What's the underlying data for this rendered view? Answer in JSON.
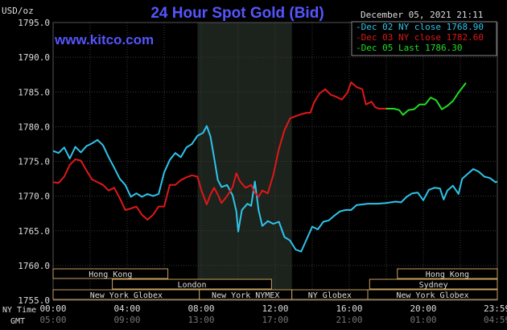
{
  "chart_data": {
    "type": "line",
    "title": "24 Hour Spot Gold (Bid)",
    "brand": "www.kitco.com",
    "date_label": "December 05, 2021 21:11",
    "ylabel": "USD/oz",
    "ylim": [
      1755.0,
      1795.0
    ],
    "y_ticks": [
      "1795.0",
      "1790.0",
      "1785.0",
      "1780.0",
      "1775.0",
      "1770.0",
      "1765.0",
      "1760.0",
      "1755.0"
    ],
    "x_range": [
      0,
      24
    ],
    "x_ticks": [
      {
        "ny": "00:00",
        "gmt": "05:00"
      },
      {
        "ny": "04:00",
        "gmt": "09:00"
      },
      {
        "ny": "08:00",
        "gmt": "13:00"
      },
      {
        "ny": "12:00",
        "gmt": "17:00"
      },
      {
        "ny": "16:00",
        "gmt": "21:00"
      },
      {
        "ny": "20:00",
        "gmt": "01:00"
      },
      {
        "ny": "23:59",
        "gmt": "04:59"
      }
    ],
    "x_axis_labels": {
      "ny": "NY Time",
      "gmt": "GMT"
    },
    "grid": true,
    "highlight_band": [
      7.8,
      12.9
    ],
    "legend_position": "top-right",
    "colors": {
      "series_a": "#2ec4ea",
      "series_b": "#e01818",
      "series_c": "#22dd22",
      "accent": "#5555ff",
      "sessions": "#c8a060"
    },
    "series": [
      {
        "name": "Dec 02 NY close 1768.90",
        "color": "#2ec4ea",
        "points": [
          [
            0,
            1776.5
          ],
          [
            0.3,
            1776.2
          ],
          [
            0.6,
            1777.0
          ],
          [
            0.9,
            1775.4
          ],
          [
            1.2,
            1777.1
          ],
          [
            1.5,
            1776.3
          ],
          [
            1.8,
            1777.2
          ],
          [
            2.1,
            1777.6
          ],
          [
            2.4,
            1778.1
          ],
          [
            2.7,
            1777.3
          ],
          [
            3.0,
            1775.6
          ],
          [
            3.3,
            1774.1
          ],
          [
            3.6,
            1772.5
          ],
          [
            3.9,
            1771.6
          ],
          [
            4.2,
            1769.9
          ],
          [
            4.5,
            1770.4
          ],
          [
            4.8,
            1769.9
          ],
          [
            5.1,
            1770.3
          ],
          [
            5.4,
            1770.0
          ],
          [
            5.7,
            1770.3
          ],
          [
            6.0,
            1773.4
          ],
          [
            6.3,
            1775.2
          ],
          [
            6.6,
            1776.2
          ],
          [
            6.9,
            1775.6
          ],
          [
            7.2,
            1777.0
          ],
          [
            7.5,
            1777.5
          ],
          [
            7.8,
            1778.7
          ],
          [
            8.1,
            1779.1
          ],
          [
            8.3,
            1780.1
          ],
          [
            8.5,
            1778.6
          ],
          [
            8.7,
            1775.5
          ],
          [
            8.9,
            1772.3
          ],
          [
            9.1,
            1771.3
          ],
          [
            9.4,
            1771.6
          ],
          [
            9.7,
            1770.1
          ],
          [
            9.9,
            1767.8
          ],
          [
            10.0,
            1764.9
          ],
          [
            10.2,
            1768.0
          ],
          [
            10.5,
            1768.9
          ],
          [
            10.7,
            1768.6
          ],
          [
            10.9,
            1772.1
          ],
          [
            11.1,
            1768.0
          ],
          [
            11.3,
            1765.7
          ],
          [
            11.6,
            1766.4
          ],
          [
            11.9,
            1766.0
          ],
          [
            12.2,
            1766.3
          ],
          [
            12.5,
            1764.1
          ],
          [
            12.8,
            1763.6
          ],
          [
            13.1,
            1762.3
          ],
          [
            13.4,
            1762.0
          ],
          [
            13.7,
            1763.8
          ],
          [
            14.0,
            1765.6
          ],
          [
            14.3,
            1765.2
          ],
          [
            14.6,
            1766.3
          ],
          [
            14.9,
            1766.5
          ],
          [
            15.2,
            1767.2
          ],
          [
            15.5,
            1767.8
          ],
          [
            15.8,
            1768.0
          ],
          [
            16.1,
            1768.0
          ],
          [
            16.4,
            1768.7
          ],
          [
            16.7,
            1768.8
          ],
          [
            17.0,
            1768.9
          ],
          [
            17.5,
            1768.9
          ],
          [
            18.0,
            1769.0
          ],
          [
            18.5,
            1769.2
          ],
          [
            18.8,
            1769.1
          ],
          [
            19.1,
            1769.9
          ],
          [
            19.4,
            1770.4
          ],
          [
            19.7,
            1770.5
          ],
          [
            20.0,
            1769.4
          ],
          [
            20.3,
            1770.9
          ],
          [
            20.6,
            1771.2
          ],
          [
            20.9,
            1771.1
          ],
          [
            21.1,
            1769.5
          ],
          [
            21.3,
            1770.8
          ],
          [
            21.6,
            1771.5
          ],
          [
            21.9,
            1770.3
          ],
          [
            22.1,
            1772.5
          ],
          [
            22.4,
            1773.2
          ],
          [
            22.7,
            1773.9
          ],
          [
            23.0,
            1773.5
          ],
          [
            23.3,
            1772.8
          ],
          [
            23.6,
            1772.6
          ],
          [
            23.9,
            1772.0
          ],
          [
            24.0,
            1772.1
          ]
        ]
      },
      {
        "name": "Dec 03 NY close 1782.60",
        "color": "#e01818",
        "points": [
          [
            0,
            1772.0
          ],
          [
            0.3,
            1771.9
          ],
          [
            0.6,
            1772.8
          ],
          [
            0.9,
            1774.5
          ],
          [
            1.2,
            1775.3
          ],
          [
            1.5,
            1775.1
          ],
          [
            1.8,
            1773.7
          ],
          [
            2.1,
            1772.4
          ],
          [
            2.4,
            1772.0
          ],
          [
            2.7,
            1771.6
          ],
          [
            3.0,
            1770.8
          ],
          [
            3.3,
            1771.2
          ],
          [
            3.6,
            1769.7
          ],
          [
            3.9,
            1768.0
          ],
          [
            4.2,
            1768.2
          ],
          [
            4.5,
            1768.5
          ],
          [
            4.8,
            1767.3
          ],
          [
            5.1,
            1766.6
          ],
          [
            5.4,
            1767.3
          ],
          [
            5.7,
            1768.5
          ],
          [
            6.0,
            1768.5
          ],
          [
            6.3,
            1771.6
          ],
          [
            6.6,
            1771.6
          ],
          [
            6.9,
            1772.3
          ],
          [
            7.2,
            1772.7
          ],
          [
            7.5,
            1773.0
          ],
          [
            7.8,
            1772.8
          ],
          [
            8.0,
            1770.9
          ],
          [
            8.3,
            1768.8
          ],
          [
            8.5,
            1770.2
          ],
          [
            8.7,
            1771.2
          ],
          [
            8.9,
            1770.2
          ],
          [
            9.1,
            1769.0
          ],
          [
            9.4,
            1770.0
          ],
          [
            9.7,
            1771.3
          ],
          [
            9.9,
            1773.3
          ],
          [
            10.1,
            1772.1
          ],
          [
            10.4,
            1771.2
          ],
          [
            10.7,
            1771.6
          ],
          [
            10.9,
            1770.5
          ],
          [
            11.1,
            1769.9
          ],
          [
            11.3,
            1770.8
          ],
          [
            11.6,
            1770.4
          ],
          [
            11.9,
            1773.1
          ],
          [
            12.2,
            1776.8
          ],
          [
            12.5,
            1779.5
          ],
          [
            12.8,
            1781.2
          ],
          [
            13.1,
            1781.5
          ],
          [
            13.4,
            1781.8
          ],
          [
            13.7,
            1782.0
          ],
          [
            13.9,
            1782.0
          ],
          [
            14.1,
            1783.5
          ],
          [
            14.4,
            1784.8
          ],
          [
            14.7,
            1785.4
          ],
          [
            15.0,
            1784.6
          ],
          [
            15.3,
            1784.3
          ],
          [
            15.6,
            1783.9
          ],
          [
            15.9,
            1784.9
          ],
          [
            16.1,
            1786.4
          ],
          [
            16.4,
            1785.7
          ],
          [
            16.7,
            1785.4
          ],
          [
            16.9,
            1783.2
          ],
          [
            17.2,
            1783.6
          ],
          [
            17.4,
            1782.8
          ],
          [
            17.6,
            1782.6
          ],
          [
            18.0,
            1782.6
          ]
        ]
      },
      {
        "name": "Dec 05 Last 1786.30",
        "color": "#22dd22",
        "points": [
          [
            18.0,
            1782.6
          ],
          [
            18.4,
            1782.6
          ],
          [
            18.7,
            1782.4
          ],
          [
            18.9,
            1781.7
          ],
          [
            19.2,
            1782.4
          ],
          [
            19.5,
            1782.5
          ],
          [
            19.8,
            1783.2
          ],
          [
            20.1,
            1783.2
          ],
          [
            20.4,
            1784.2
          ],
          [
            20.7,
            1783.8
          ],
          [
            21.0,
            1782.5
          ],
          [
            21.3,
            1783.0
          ],
          [
            21.6,
            1783.7
          ],
          [
            21.9,
            1784.9
          ],
          [
            22.1,
            1785.6
          ],
          [
            22.3,
            1786.3
          ]
        ]
      }
    ],
    "sessions": [
      {
        "label": "Hong Kong",
        "start": 0,
        "end": 6.2,
        "row": 0
      },
      {
        "label": "Hong Kong",
        "start": 18.6,
        "end": 24,
        "row": 0
      },
      {
        "label": "London",
        "start": 3.2,
        "end": 11.8,
        "row": 1
      },
      {
        "label": "Sydney",
        "start": 17.1,
        "end": 24,
        "row": 1
      },
      {
        "label": "New York Globex",
        "start": 0,
        "end": 7.9,
        "row": 2
      },
      {
        "label": "New York NYMEX",
        "start": 7.9,
        "end": 12.9,
        "row": 2
      },
      {
        "label": "NY Globex",
        "start": 12.9,
        "end": 17.0,
        "row": 2
      },
      {
        "label": "New York Globex",
        "start": 17.0,
        "end": 24,
        "row": 2
      }
    ]
  }
}
